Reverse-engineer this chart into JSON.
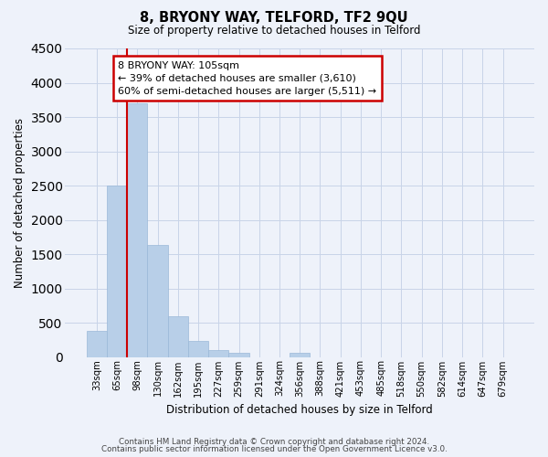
{
  "title": "8, BRYONY WAY, TELFORD, TF2 9QU",
  "subtitle": "Size of property relative to detached houses in Telford",
  "xlabel": "Distribution of detached houses by size in Telford",
  "ylabel": "Number of detached properties",
  "bar_labels": [
    "33sqm",
    "65sqm",
    "98sqm",
    "130sqm",
    "162sqm",
    "195sqm",
    "227sqm",
    "259sqm",
    "291sqm",
    "324sqm",
    "356sqm",
    "388sqm",
    "421sqm",
    "453sqm",
    "485sqm",
    "518sqm",
    "550sqm",
    "582sqm",
    "614sqm",
    "647sqm",
    "679sqm"
  ],
  "bar_values": [
    380,
    2500,
    3700,
    1630,
    600,
    240,
    100,
    60,
    0,
    0,
    60,
    0,
    0,
    0,
    0,
    0,
    0,
    0,
    0,
    0,
    0
  ],
  "bar_color": "#b8cfe8",
  "bar_edge_color": "#9ab8d8",
  "vline_color": "#cc0000",
  "annotation_text": "8 BRYONY WAY: 105sqm\n← 39% of detached houses are smaller (3,610)\n60% of semi-detached houses are larger (5,511) →",
  "annotation_box_color": "#ffffff",
  "annotation_box_edge": "#cc0000",
  "ylim": [
    0,
    4500
  ],
  "yticks": [
    0,
    500,
    1000,
    1500,
    2000,
    2500,
    3000,
    3500,
    4000,
    4500
  ],
  "grid_color": "#c8d4e8",
  "background_color": "#eef2fa",
  "footer_line1": "Contains HM Land Registry data © Crown copyright and database right 2024.",
  "footer_line2": "Contains public sector information licensed under the Open Government Licence v3.0."
}
